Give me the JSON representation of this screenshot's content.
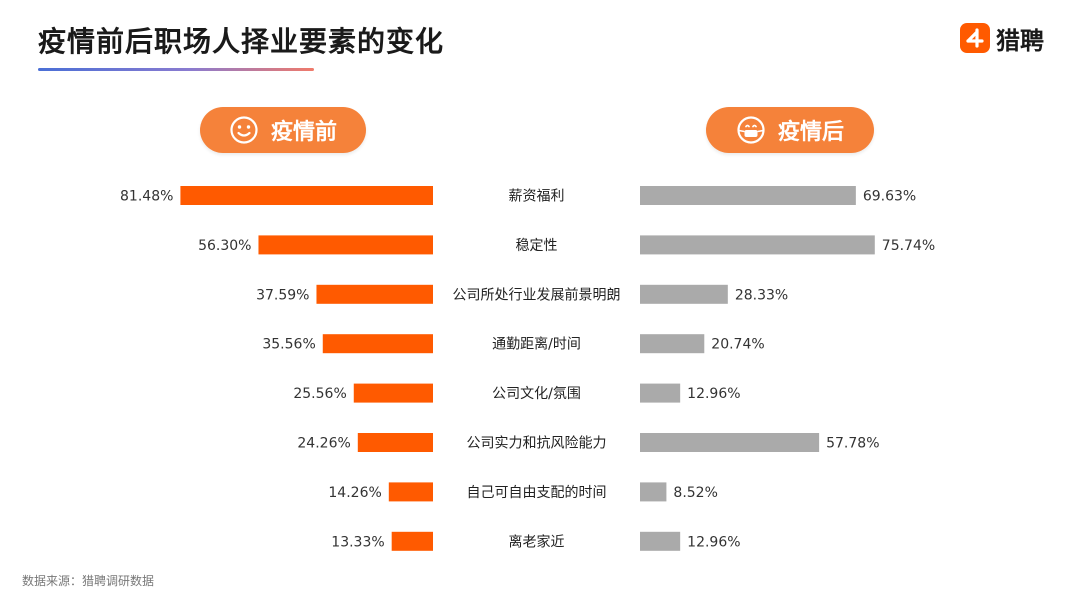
{
  "title": "疫情前后职场人择业要素的变化",
  "brand": {
    "name": "猎聘",
    "accent_color": "#ff5a00"
  },
  "groups": {
    "before_label": "疫情前",
    "after_label": "疫情后",
    "before_icon": "smiley-face-icon",
    "after_icon": "masked-face-icon",
    "pill_color": "#f5823a"
  },
  "source": "数据来源：猎聘调研数据",
  "chart_data": {
    "type": "bar",
    "layout": "butterfly",
    "categories": [
      "薪资福利",
      "稳定性",
      "公司所处行业发展前景明朗",
      "通勤距离/时间",
      "公司文化/氛围",
      "公司实力和抗风险能力",
      "自己可自由支配的时间",
      "离老家近"
    ],
    "series": [
      {
        "name": "疫情前",
        "color": "#ff5a00",
        "values": [
          81.48,
          56.3,
          37.59,
          35.56,
          25.56,
          24.26,
          14.26,
          13.33
        ],
        "labels": [
          "81.48%",
          "56.30%",
          "37.59%",
          "35.56%",
          "25.56%",
          "24.26%",
          "14.26%",
          "13.33%"
        ]
      },
      {
        "name": "疫情后",
        "color": "#aaaaaa",
        "values": [
          69.63,
          75.74,
          28.33,
          20.74,
          12.96,
          57.78,
          8.52,
          12.96
        ],
        "labels": [
          "69.63%",
          "75.74%",
          "28.33%",
          "20.74%",
          "12.96%",
          "57.78%",
          "8.52%",
          "12.96%"
        ]
      }
    ],
    "xlim": [
      0,
      100
    ]
  }
}
